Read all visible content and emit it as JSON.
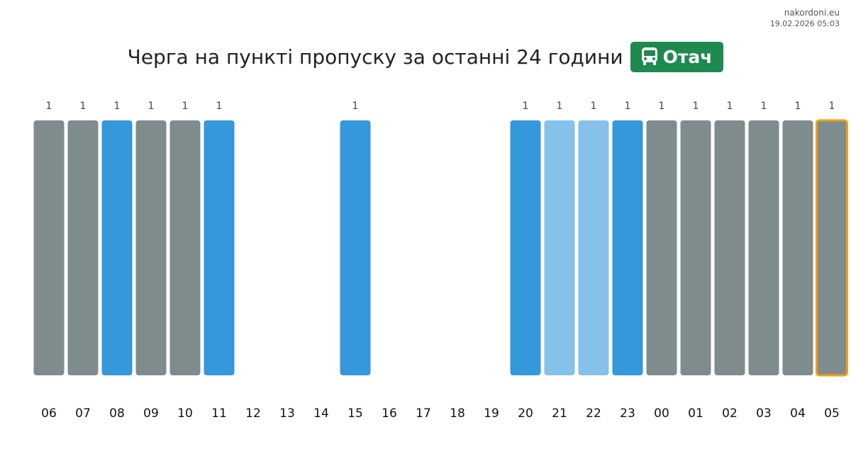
{
  "site": "nakordoni.eu",
  "timestamp": "19.02.2026 05:03",
  "chart_data": {
    "type": "bar",
    "title": "Черга на пункті пропуску за останні 24 години",
    "badge": "Отач",
    "categories": [
      "06",
      "07",
      "08",
      "09",
      "10",
      "11",
      "12",
      "13",
      "14",
      "15",
      "16",
      "17",
      "18",
      "19",
      "20",
      "21",
      "22",
      "23",
      "00",
      "01",
      "02",
      "03",
      "04",
      "05"
    ],
    "values": [
      1,
      1,
      1,
      1,
      1,
      1,
      null,
      null,
      null,
      1,
      null,
      null,
      null,
      null,
      1,
      1,
      1,
      1,
      1,
      1,
      1,
      1,
      1,
      1
    ],
    "colors": [
      "#7f8c8d",
      "#7f8c8d",
      "#3498db",
      "#7f8c8d",
      "#7f8c8d",
      "#3498db",
      null,
      null,
      null,
      "#3498db",
      null,
      null,
      null,
      null,
      "#3498db",
      "#85c1e9",
      "#85c1e9",
      "#3498db",
      "#7f8c8d",
      "#7f8c8d",
      "#7f8c8d",
      "#7f8c8d",
      "#7f8c8d",
      "#7f8c8d"
    ],
    "highlight": {
      "category": "05",
      "color": "#f39c12"
    },
    "ylim": [
      0,
      1
    ]
  }
}
